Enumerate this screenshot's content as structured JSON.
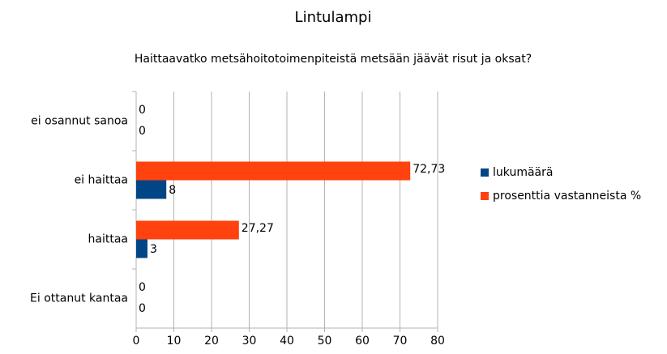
{
  "chart_data": {
    "type": "bar",
    "orientation": "horizontal",
    "title": "Lintulampi",
    "subtitle": "Haittaavatko metsähoitotoimenpiteistä metsään jäävät risut ja oksat?",
    "categories": [
      "ei osannut sanoa",
      "ei haittaa",
      "haittaa",
      "Ei ottanut kantaa"
    ],
    "series": [
      {
        "name": "lukumäärä",
        "color": "#004586",
        "values": [
          0,
          8,
          3,
          0
        ]
      },
      {
        "name": "prosenttia vastanneista %",
        "color": "#ff420e",
        "values": [
          0,
          72.73,
          27.27,
          0
        ],
        "value_labels": [
          "0",
          "72,73",
          "27,27",
          "0"
        ]
      }
    ],
    "xlim": [
      0,
      80
    ],
    "xticks": [
      0,
      10,
      20,
      30,
      40,
      50,
      60,
      70,
      80
    ],
    "grid": true,
    "legend": "right"
  }
}
